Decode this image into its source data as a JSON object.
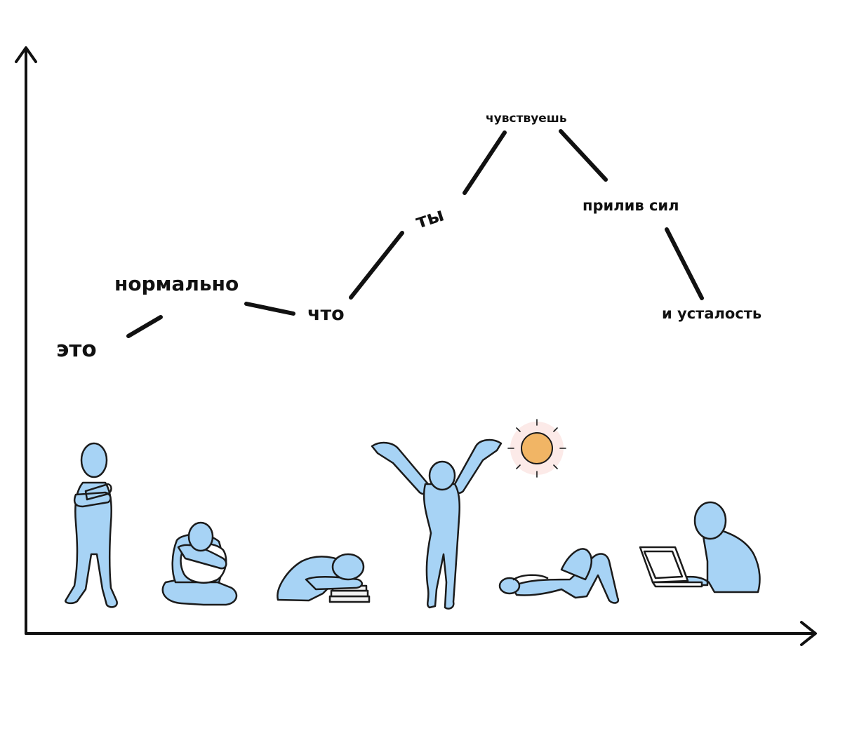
{
  "phrase": {
    "words": [
      "это",
      "нормально",
      "что",
      "ты",
      "чувствуешь",
      "прилив сил",
      "и усталость"
    ]
  },
  "illustration": {
    "figure_color": "#a7d3f5",
    "outline_color": "#1b1b1b",
    "sun_color": "#f1b565",
    "sun_glow_color": "#f7c4bd",
    "figures": [
      {
        "name": "standing-arms-crossed-figure"
      },
      {
        "name": "sitting-hugging-pillow-figure"
      },
      {
        "name": "sleeping-on-books-figure"
      },
      {
        "name": "stretching-arms-up-figure"
      },
      {
        "name": "lying-down-relaxing-figure"
      },
      {
        "name": "working-on-laptop-figure"
      }
    ]
  }
}
